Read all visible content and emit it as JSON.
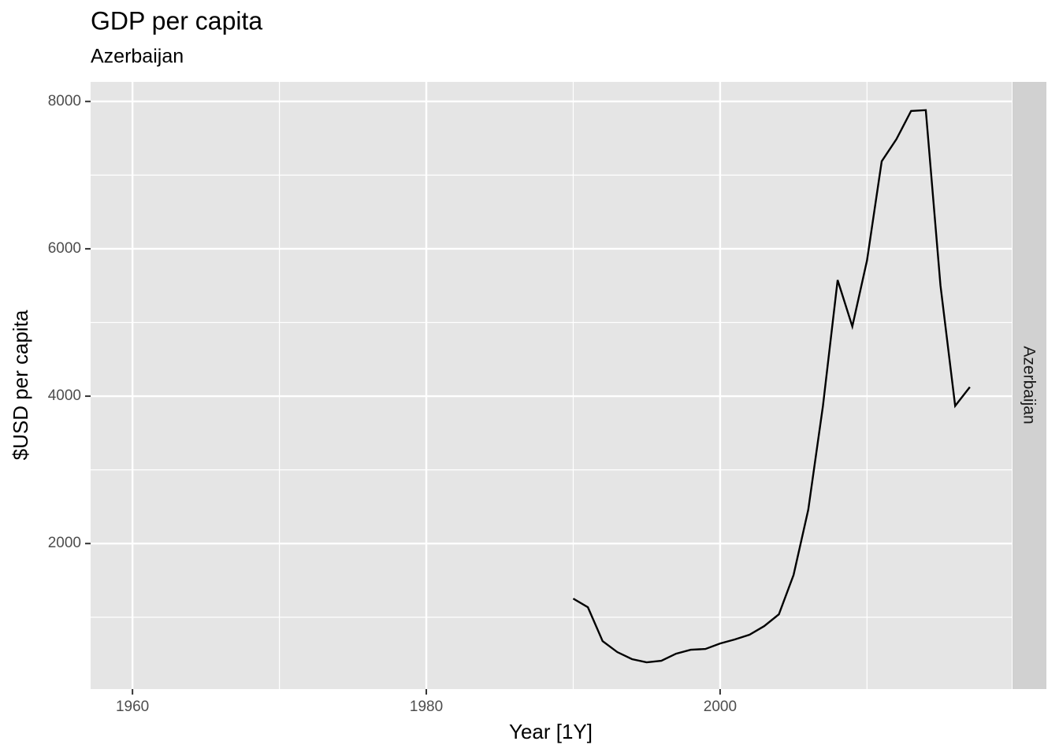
{
  "chart_data": {
    "type": "line",
    "title": "GDP per capita",
    "subtitle": "Azerbaijan",
    "xlabel": "Year [1Y]",
    "ylabel": "$USD per capita",
    "strip": "Azerbaijan",
    "x": [
      1990,
      1991,
      1992,
      1993,
      1994,
      1995,
      1996,
      1997,
      1998,
      1999,
      2000,
      2001,
      2002,
      2003,
      2004,
      2005,
      2006,
      2007,
      2008,
      2009,
      2010,
      2011,
      2012,
      2013,
      2014,
      2015,
      2016,
      2017
    ],
    "series": [
      {
        "name": "Azerbaijan",
        "color": "#000000",
        "values": [
          1253,
          1135,
          676,
          527,
          431,
          388,
          409,
          505,
          559,
          569,
          644,
          698,
          762,
          879,
          1039,
          1573,
          2459,
          3868,
          5576,
          4946,
          5843,
          7188,
          7487,
          7871,
          7882,
          5502,
          3868,
          4124
        ]
      }
    ],
    "xlim": [
      1957.15,
      2019.85
    ],
    "xticks": [
      1960,
      1980,
      2000
    ],
    "xminor": [
      1970,
      1990,
      2010
    ],
    "ylim": [
      25,
      8265
    ],
    "yticks": [
      2000,
      4000,
      6000,
      8000
    ],
    "yminor": [
      1000,
      3000,
      5000,
      7000
    ],
    "grid": true
  }
}
